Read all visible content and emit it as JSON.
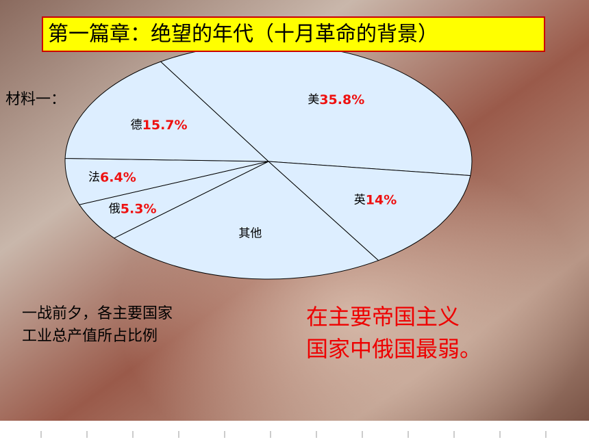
{
  "chart_data": {
    "type": "pie",
    "title": "第一篇章：绝望的年代（十月革命的背景）",
    "material_label": "材料一：",
    "caption": [
      "一战前夕，各主要国家",
      "工业总产值所占比例"
    ],
    "conclusion": [
      "在主要帝国主义",
      "国家中俄国最弱。"
    ],
    "categories": [
      "美",
      "英",
      "其他",
      "俄",
      "法",
      "德"
    ],
    "values": [
      35.8,
      14,
      22.8,
      5.3,
      6.4,
      15.7
    ],
    "value_labels": [
      "35.8%",
      "14%",
      null,
      "5.3%",
      "6.4%",
      "15.7%"
    ],
    "color": "#ddeeff",
    "label_color": "#ee1111"
  }
}
